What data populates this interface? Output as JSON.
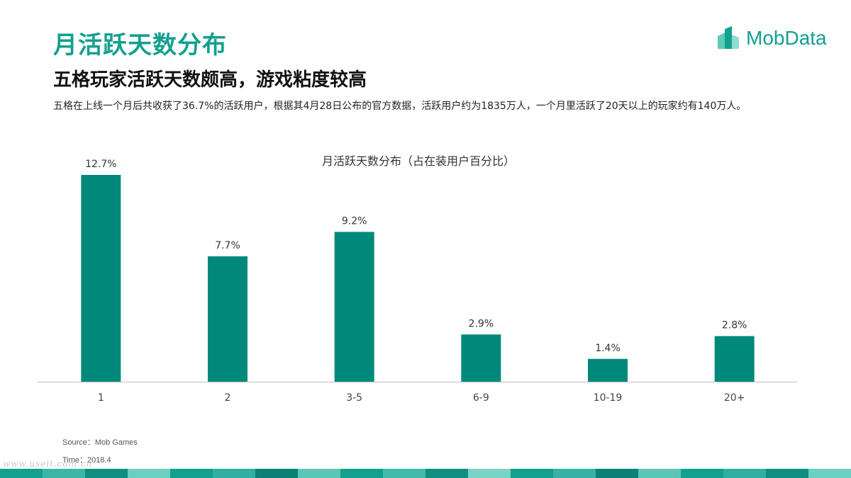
{
  "header": {
    "title": "月活跃天数分布",
    "subtitle": "五格玩家活跃天数颇高，游戏粘度较高",
    "description": "五格在上线一个月后共收获了36.7%的活跃用户，根据其4月28日公布的官方数据，活跃用户约为1835万人，一个月里活跃了20天以上的玩家约有140万人。"
  },
  "logo": {
    "text": "MobData"
  },
  "colors": {
    "accent": "#12a08f",
    "bar": "#00897b",
    "axis": "#bfbfbf"
  },
  "chart_data": {
    "type": "bar",
    "title": "月活跃天数分布（占在装用户百分比）",
    "categories": [
      "1",
      "2",
      "3-5",
      "6-9",
      "10-19",
      "20+"
    ],
    "values": [
      12.7,
      7.7,
      9.2,
      2.9,
      1.4,
      2.8
    ],
    "data_labels": [
      "12.7%",
      "7.7%",
      "9.2%",
      "2.9%",
      "1.4%",
      "2.8%"
    ],
    "unit": "%",
    "xlabel": "",
    "ylabel": "",
    "ylim": [
      0,
      13.7
    ],
    "grid": false,
    "legend": "none"
  },
  "footer": {
    "source": "Source：Mob Games",
    "time": "Time：2018.4",
    "watermark": "www.useit.com.cn"
  }
}
